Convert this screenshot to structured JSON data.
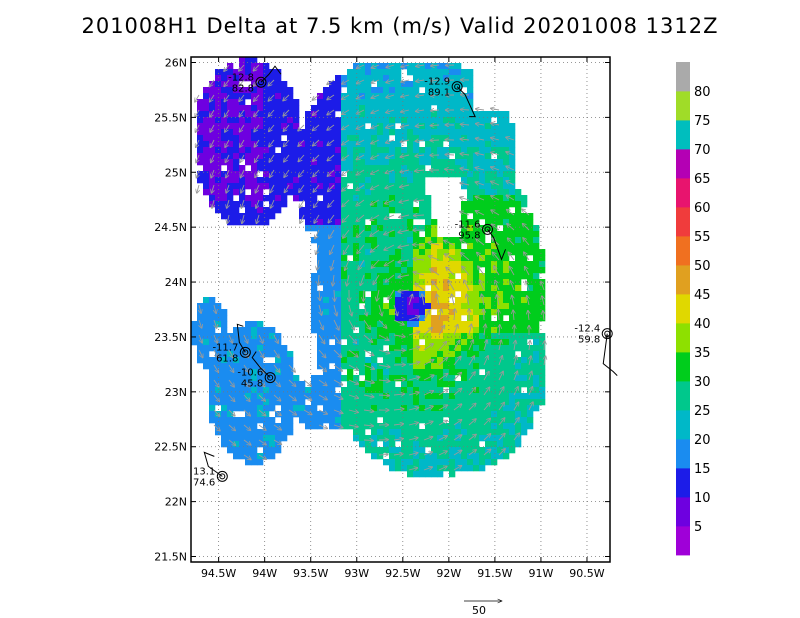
{
  "title": "201008H1  Delta  at  7.5  km  (m/s)  Valid  20201008  1312Z",
  "map": {
    "lon_range": [
      -94.8,
      -90.25
    ],
    "lat_range": [
      21.45,
      26.05
    ],
    "lon_ticks": [
      {
        "lon": -94.5,
        "label": "94.5W"
      },
      {
        "lon": -94.0,
        "label": "94W"
      },
      {
        "lon": -93.5,
        "label": "93.5W"
      },
      {
        "lon": -93.0,
        "label": "93W"
      },
      {
        "lon": -92.5,
        "label": "92.5W"
      },
      {
        "lon": -92.0,
        "label": "92W"
      },
      {
        "lon": -91.5,
        "label": "91.5W"
      },
      {
        "lon": -91.0,
        "label": "91W"
      },
      {
        "lon": -90.5,
        "label": "90.5W"
      }
    ],
    "lat_ticks": [
      {
        "lat": 26.0,
        "label": "26N"
      },
      {
        "lat": 25.5,
        "label": "25.5N"
      },
      {
        "lat": 25.0,
        "label": "25N"
      },
      {
        "lat": 24.5,
        "label": "24.5N"
      },
      {
        "lat": 24.0,
        "label": "24N"
      },
      {
        "lat": 23.5,
        "label": "23.5N"
      },
      {
        "lat": 23.0,
        "label": "23N"
      },
      {
        "lat": 22.5,
        "label": "22.5N"
      },
      {
        "lat": 22.0,
        "label": "22N"
      },
      {
        "lat": 21.5,
        "label": "21.5N"
      }
    ],
    "grid": "dotted",
    "storm_center": {
      "lon": -92.45,
      "lat": 23.8
    }
  },
  "colorbar": {
    "colors": [
      "#9f00d8",
      "#6e00e0",
      "#1c1ce8",
      "#1a8cf0",
      "#00b8c8",
      "#00c88c",
      "#00cd1c",
      "#8ee000",
      "#e0d800",
      "#e0a020",
      "#f07020",
      "#f03c3c",
      "#e8146e",
      "#b400b4",
      "#00bebe",
      "#a0dc28",
      "#aaaaaa"
    ],
    "labels": [
      "5",
      "10",
      "15",
      "20",
      "25",
      "30",
      "35",
      "40",
      "45",
      "50",
      "55",
      "60",
      "65",
      "70",
      "75",
      "80"
    ]
  },
  "observations": [
    {
      "lon": -94.04,
      "lat": 25.82,
      "temp": "-12.8",
      "rh": "82.8"
    },
    {
      "lon": -91.91,
      "lat": 25.78,
      "temp": "-12.9",
      "rh": "89.1"
    },
    {
      "lon": -91.58,
      "lat": 24.48,
      "temp": "-11.6",
      "rh": "95.8"
    },
    {
      "lon": -90.28,
      "lat": 23.53,
      "temp": "-12.4",
      "rh": "59.8"
    },
    {
      "lon": -94.21,
      "lat": 23.36,
      "temp": "-11.7",
      "rh": "61.8"
    },
    {
      "lon": -93.94,
      "lat": 23.13,
      "temp": "-10.6",
      "rh": "45.8"
    },
    {
      "lon": -94.46,
      "lat": 22.23,
      "temp": "13.1",
      "rh": "74.6"
    }
  ],
  "reference_vector": {
    "value": "50"
  }
}
